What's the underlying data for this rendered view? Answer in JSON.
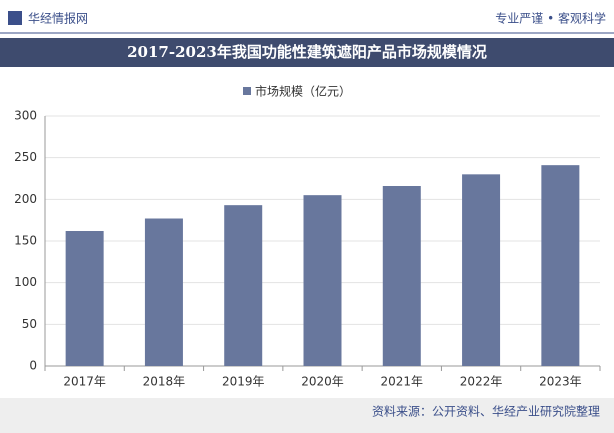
{
  "header": {
    "logo": "华经情报网",
    "slogan": "专业严谨 • 客观科学"
  },
  "chart_data": {
    "type": "bar",
    "title": "2017-2023年我国功能性建筑遮阳产品市场规模情况",
    "categories": [
      "2017年",
      "2018年",
      "2019年",
      "2020年",
      "2021年",
      "2022年",
      "2023年"
    ],
    "series": [
      {
        "name": "市场规模（亿元）",
        "color": "#68779d",
        "values": [
          162,
          177,
          193,
          205,
          216,
          230,
          241
        ]
      }
    ],
    "ylim": [
      0,
      300
    ],
    "yticks": [
      0,
      50,
      100,
      150,
      200,
      250,
      300
    ],
    "grid": true,
    "legend": "top"
  },
  "footer": {
    "source": "资料来源：公开资料、华经产业研究院整理"
  }
}
